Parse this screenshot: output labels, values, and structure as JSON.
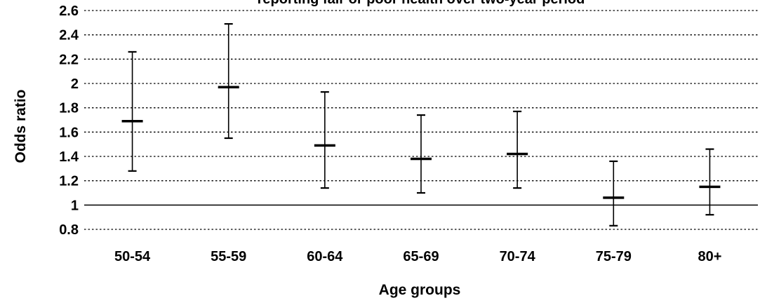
{
  "chart_data": {
    "type": "error-bar",
    "title": "reporting fair or poor health over two-year period",
    "xlabel": "Age groups",
    "ylabel": "Odds ratio",
    "ylim": [
      0.8,
      2.6
    ],
    "yticks": [
      "0.8",
      "1",
      "1.2",
      "1.4",
      "1.6",
      "1.8",
      "2",
      "2.2",
      "2.4",
      "2.6"
    ],
    "reference_line": 1,
    "grid": "horizontal dotted",
    "categories": [
      "50-54",
      "55-59",
      "60-64",
      "65-69",
      "70-74",
      "75-79",
      "80+"
    ],
    "estimate": [
      1.69,
      1.97,
      1.49,
      1.38,
      1.42,
      1.06,
      1.15
    ],
    "lower": [
      1.28,
      1.55,
      1.14,
      1.1,
      1.14,
      0.83,
      0.92
    ],
    "upper": [
      2.26,
      2.49,
      1.93,
      1.74,
      1.77,
      1.36,
      1.46
    ]
  },
  "colors": {
    "mark": "#000000",
    "grid": "#000000",
    "background": "#ffffff"
  }
}
